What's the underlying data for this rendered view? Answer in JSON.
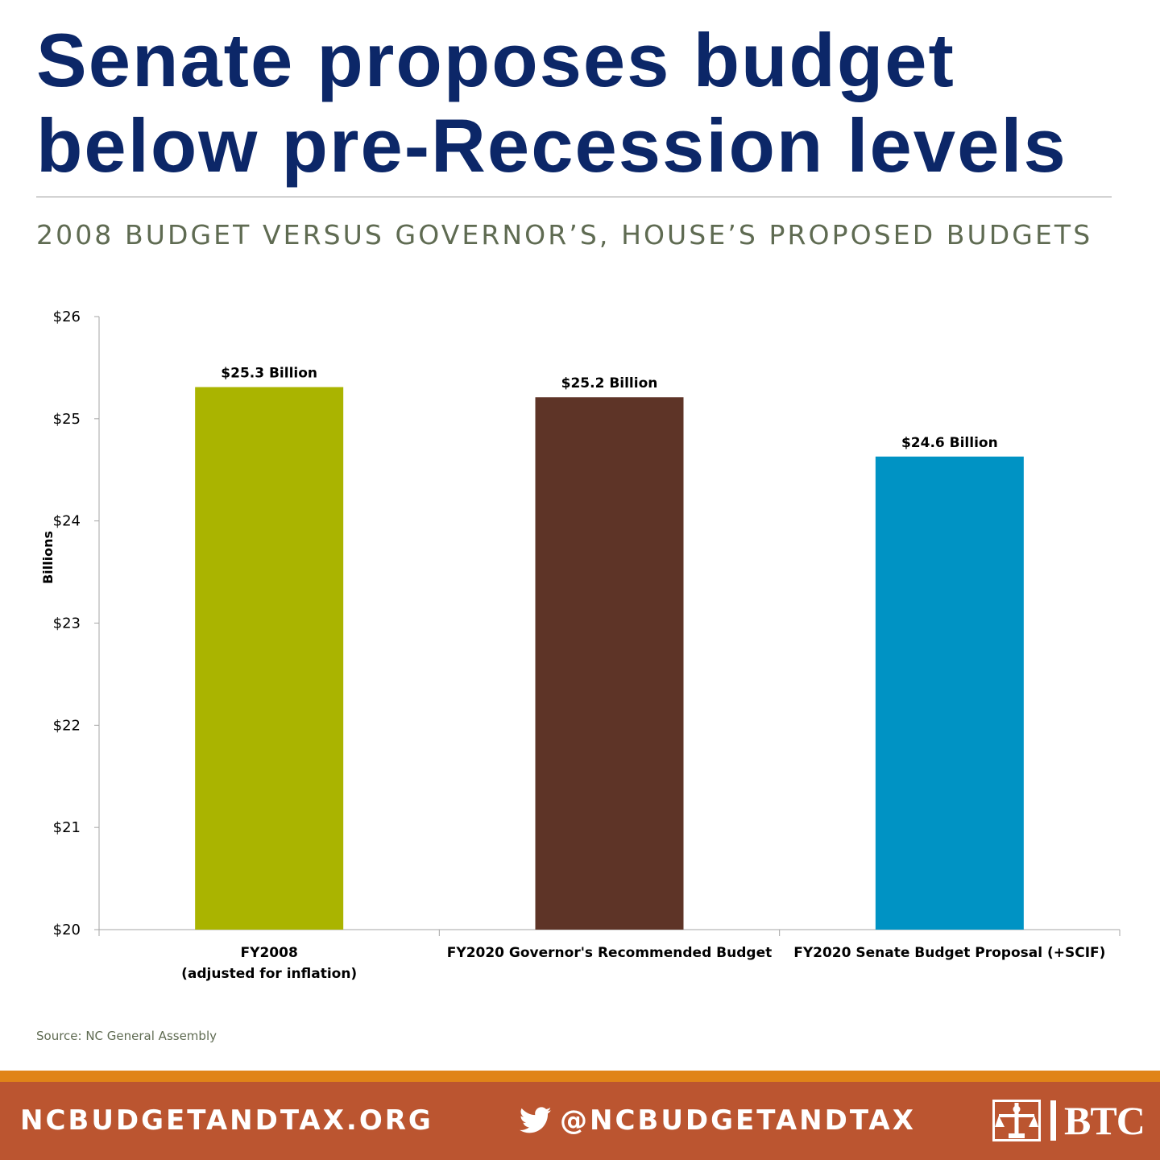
{
  "header": {
    "title_line1": "Senate proposes budget",
    "title_line2": "below pre-Recession levels",
    "subtitle": "2008 BUDGET VERSUS GOVERNOR’S, HOUSE’S PROPOSED BUDGETS"
  },
  "chart_data": {
    "type": "bar",
    "categories": [
      [
        "FY2008",
        "(adjusted for inflation)"
      ],
      [
        "FY2020 Governor's Recommended Budget"
      ],
      [
        "FY2020 Senate Budget Proposal (+SCIF)"
      ]
    ],
    "values": [
      25.31,
      25.21,
      24.63
    ],
    "data_labels": [
      "$25.3 Billion",
      "$25.2 Billion",
      "$24.6 Billion"
    ],
    "colors": [
      "#aab400",
      "#5e3427",
      "#0093c4"
    ],
    "ylabel": "Billions",
    "ylim": [
      20,
      26
    ],
    "yticks": [
      20,
      21,
      22,
      23,
      24,
      25,
      26
    ],
    "ytick_labels": [
      "$20",
      "$21",
      "$22",
      "$23",
      "$24",
      "$25",
      "$26"
    ],
    "grid": false,
    "legend": "none"
  },
  "source": "Source: NC General Assembly",
  "footer": {
    "site": "NCBUDGETANDTAX.ORG",
    "twitter_icon": "twitter-bird-icon",
    "twitter_handle": "@NCBUDGETANDTAX",
    "logo_icon": "btc-scales-icon",
    "logo_text": "BTC",
    "background": "#bb5530",
    "stripe": "#e08418"
  },
  "colors": {
    "title": "#0c2768",
    "subtitle": "#5f6b52"
  }
}
